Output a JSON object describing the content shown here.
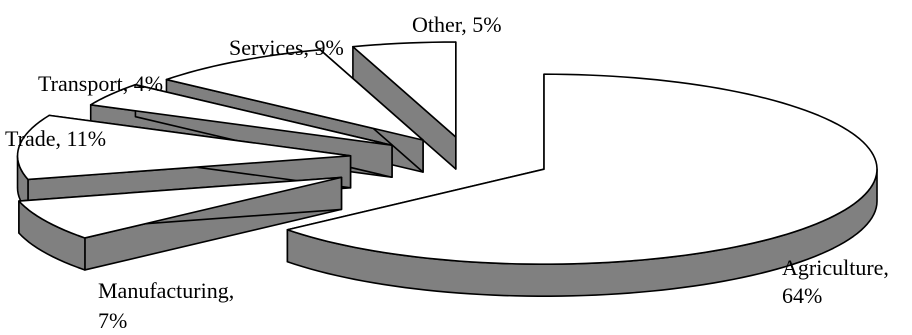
{
  "chart_data": {
    "type": "pie",
    "style": "3d-exploded",
    "slices": [
      {
        "name": "Agriculture",
        "value": 64,
        "label_lines": [
          "Agriculture,",
          "64%"
        ]
      },
      {
        "name": "Manufacturing",
        "value": 7,
        "label_lines": [
          "Manufacturing,",
          "7%"
        ]
      },
      {
        "name": "Trade",
        "value": 11,
        "label_lines": [
          "Trade, 11%"
        ]
      },
      {
        "name": "Transport",
        "value": 4,
        "label_lines": [
          "Transport, 4%"
        ]
      },
      {
        "name": "Services",
        "value": 9,
        "label_lines": [
          "Services, 9%"
        ]
      },
      {
        "name": "Other",
        "value": 5,
        "label_lines": [
          "Other, 5%"
        ]
      }
    ],
    "colors": {
      "top": "#ffffff",
      "side": "#808080",
      "outline": "#000000"
    },
    "legend": false
  }
}
